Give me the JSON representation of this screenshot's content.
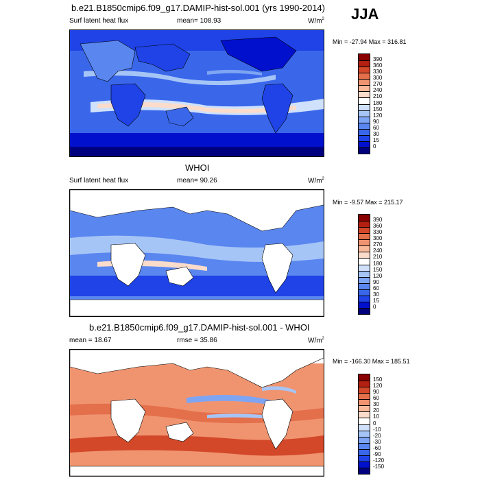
{
  "season": "JJA",
  "colors": {
    "blue_scale": [
      "#00007f",
      "#0010cc",
      "#1f43e6",
      "#3a67ea",
      "#5a86ef",
      "#7ea5f3",
      "#a6c5f7",
      "#cfe1fb",
      "#ffffff",
      "#fbdccb",
      "#f7b99a",
      "#f09470",
      "#e46f4b",
      "#d24829",
      "#b32012",
      "#8a0000"
    ],
    "diff_scale": [
      "#00007f",
      "#0010cc",
      "#1f43e6",
      "#3a67ea",
      "#5a86ef",
      "#7ea5f3",
      "#a6c5f7",
      "#cfe1fb",
      "#ffffff",
      "#fbdccb",
      "#f7b99a",
      "#f09470",
      "#e46f4b",
      "#d24829",
      "#b32012",
      "#8a0000"
    ]
  },
  "panels": [
    {
      "title": "b.e21.B1850cmip6.f09_g17.DAMIP-hist-sol.001 (yrs 1990-2014)",
      "left_label": "Surf latent heat flux",
      "center_label": "mean= 108.93",
      "units": "W/m",
      "units_sup": "2",
      "minmax": "Min = -27.94 Max = 316.81",
      "colorbar_ticks": [
        "390",
        "360",
        "330",
        "300",
        "270",
        "240",
        "210",
        "180",
        "150",
        "120",
        "90",
        "60",
        "30",
        "15",
        "0"
      ]
    },
    {
      "title": "WHOI",
      "left_label": "Surf latent heat flux",
      "center_label": "mean=  90.26",
      "units": "W/m",
      "units_sup": "2",
      "minmax": "Min =  -9.57 Max = 215.17",
      "colorbar_ticks": [
        "390",
        "360",
        "330",
        "300",
        "270",
        "240",
        "210",
        "180",
        "150",
        "120",
        "90",
        "60",
        "30",
        "15",
        "0"
      ]
    },
    {
      "title": "b.e21.B1850cmip6.f09_g17.DAMIP-hist-sol.001 - WHOI",
      "left_label": "mean =  18.67",
      "center_label": "rmse =  35.86",
      "units": "W/m",
      "units_sup": "2",
      "minmax": "Min = -166.30 Max = 185.51",
      "colorbar_ticks": [
        "150",
        "120",
        "90",
        "60",
        "30",
        "20",
        "10",
        "0",
        "-10",
        "-20",
        "-30",
        "-60",
        "-90",
        "-120",
        "-150"
      ]
    }
  ]
}
